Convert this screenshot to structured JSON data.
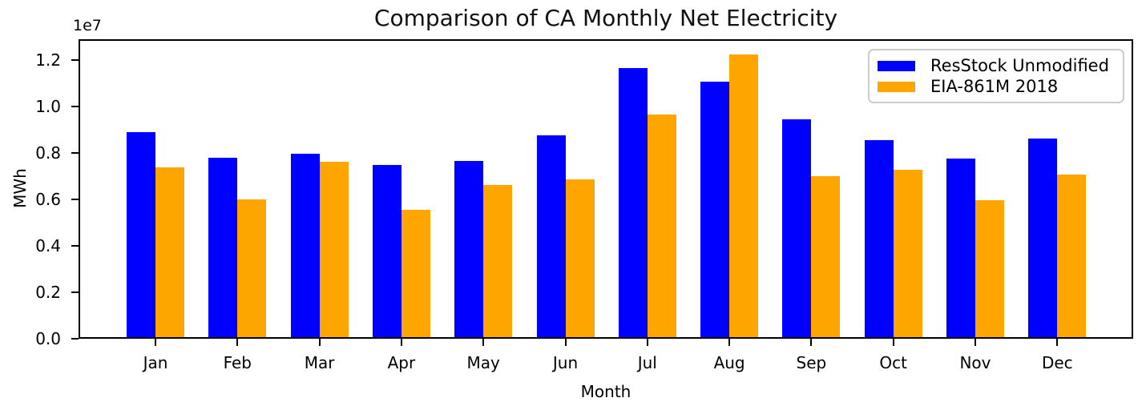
{
  "figure": {
    "title": "Comparison of CA Monthly Net Electricity",
    "xlabel": "Month",
    "ylabel": "MWh",
    "offset_text": "1e7"
  },
  "legend": {
    "position": "upper right",
    "entries": [
      {
        "label": "ResStock Unmodified",
        "color": "#0000ff"
      },
      {
        "label": "EIA-861M 2018",
        "color": "#ffa500"
      }
    ]
  },
  "chart_data": {
    "type": "bar",
    "title": "Comparison of CA Monthly Net Electricity",
    "xlabel": "Month",
    "ylabel": "MWh",
    "categories": [
      "Jan",
      "Feb",
      "Mar",
      "Apr",
      "May",
      "Jun",
      "Jul",
      "Aug",
      "Sep",
      "Oct",
      "Nov",
      "Dec"
    ],
    "series": [
      {
        "name": "ResStock Unmodified",
        "color": "#0000ff",
        "values": [
          8880000,
          7780000,
          7970000,
          7460000,
          7660000,
          8740000,
          11650000,
          11060000,
          9440000,
          8540000,
          7740000,
          8610000
        ]
      },
      {
        "name": "EIA-861M 2018",
        "color": "#ffa500",
        "values": [
          7360000,
          6010000,
          7620000,
          5540000,
          6630000,
          6860000,
          9650000,
          12230000,
          7000000,
          7280000,
          5960000,
          7050000
        ]
      }
    ],
    "ylim": [
      0,
      12880000
    ],
    "yticks": [
      0,
      2000000,
      4000000,
      6000000,
      8000000,
      10000000,
      12000000
    ],
    "ytick_labels": [
      "0.0",
      "0.2",
      "0.4",
      "0.6",
      "0.8",
      "1.0",
      "1.2"
    ],
    "y_offset_label": "1e7",
    "legend_position": "upper right",
    "grid": false
  }
}
